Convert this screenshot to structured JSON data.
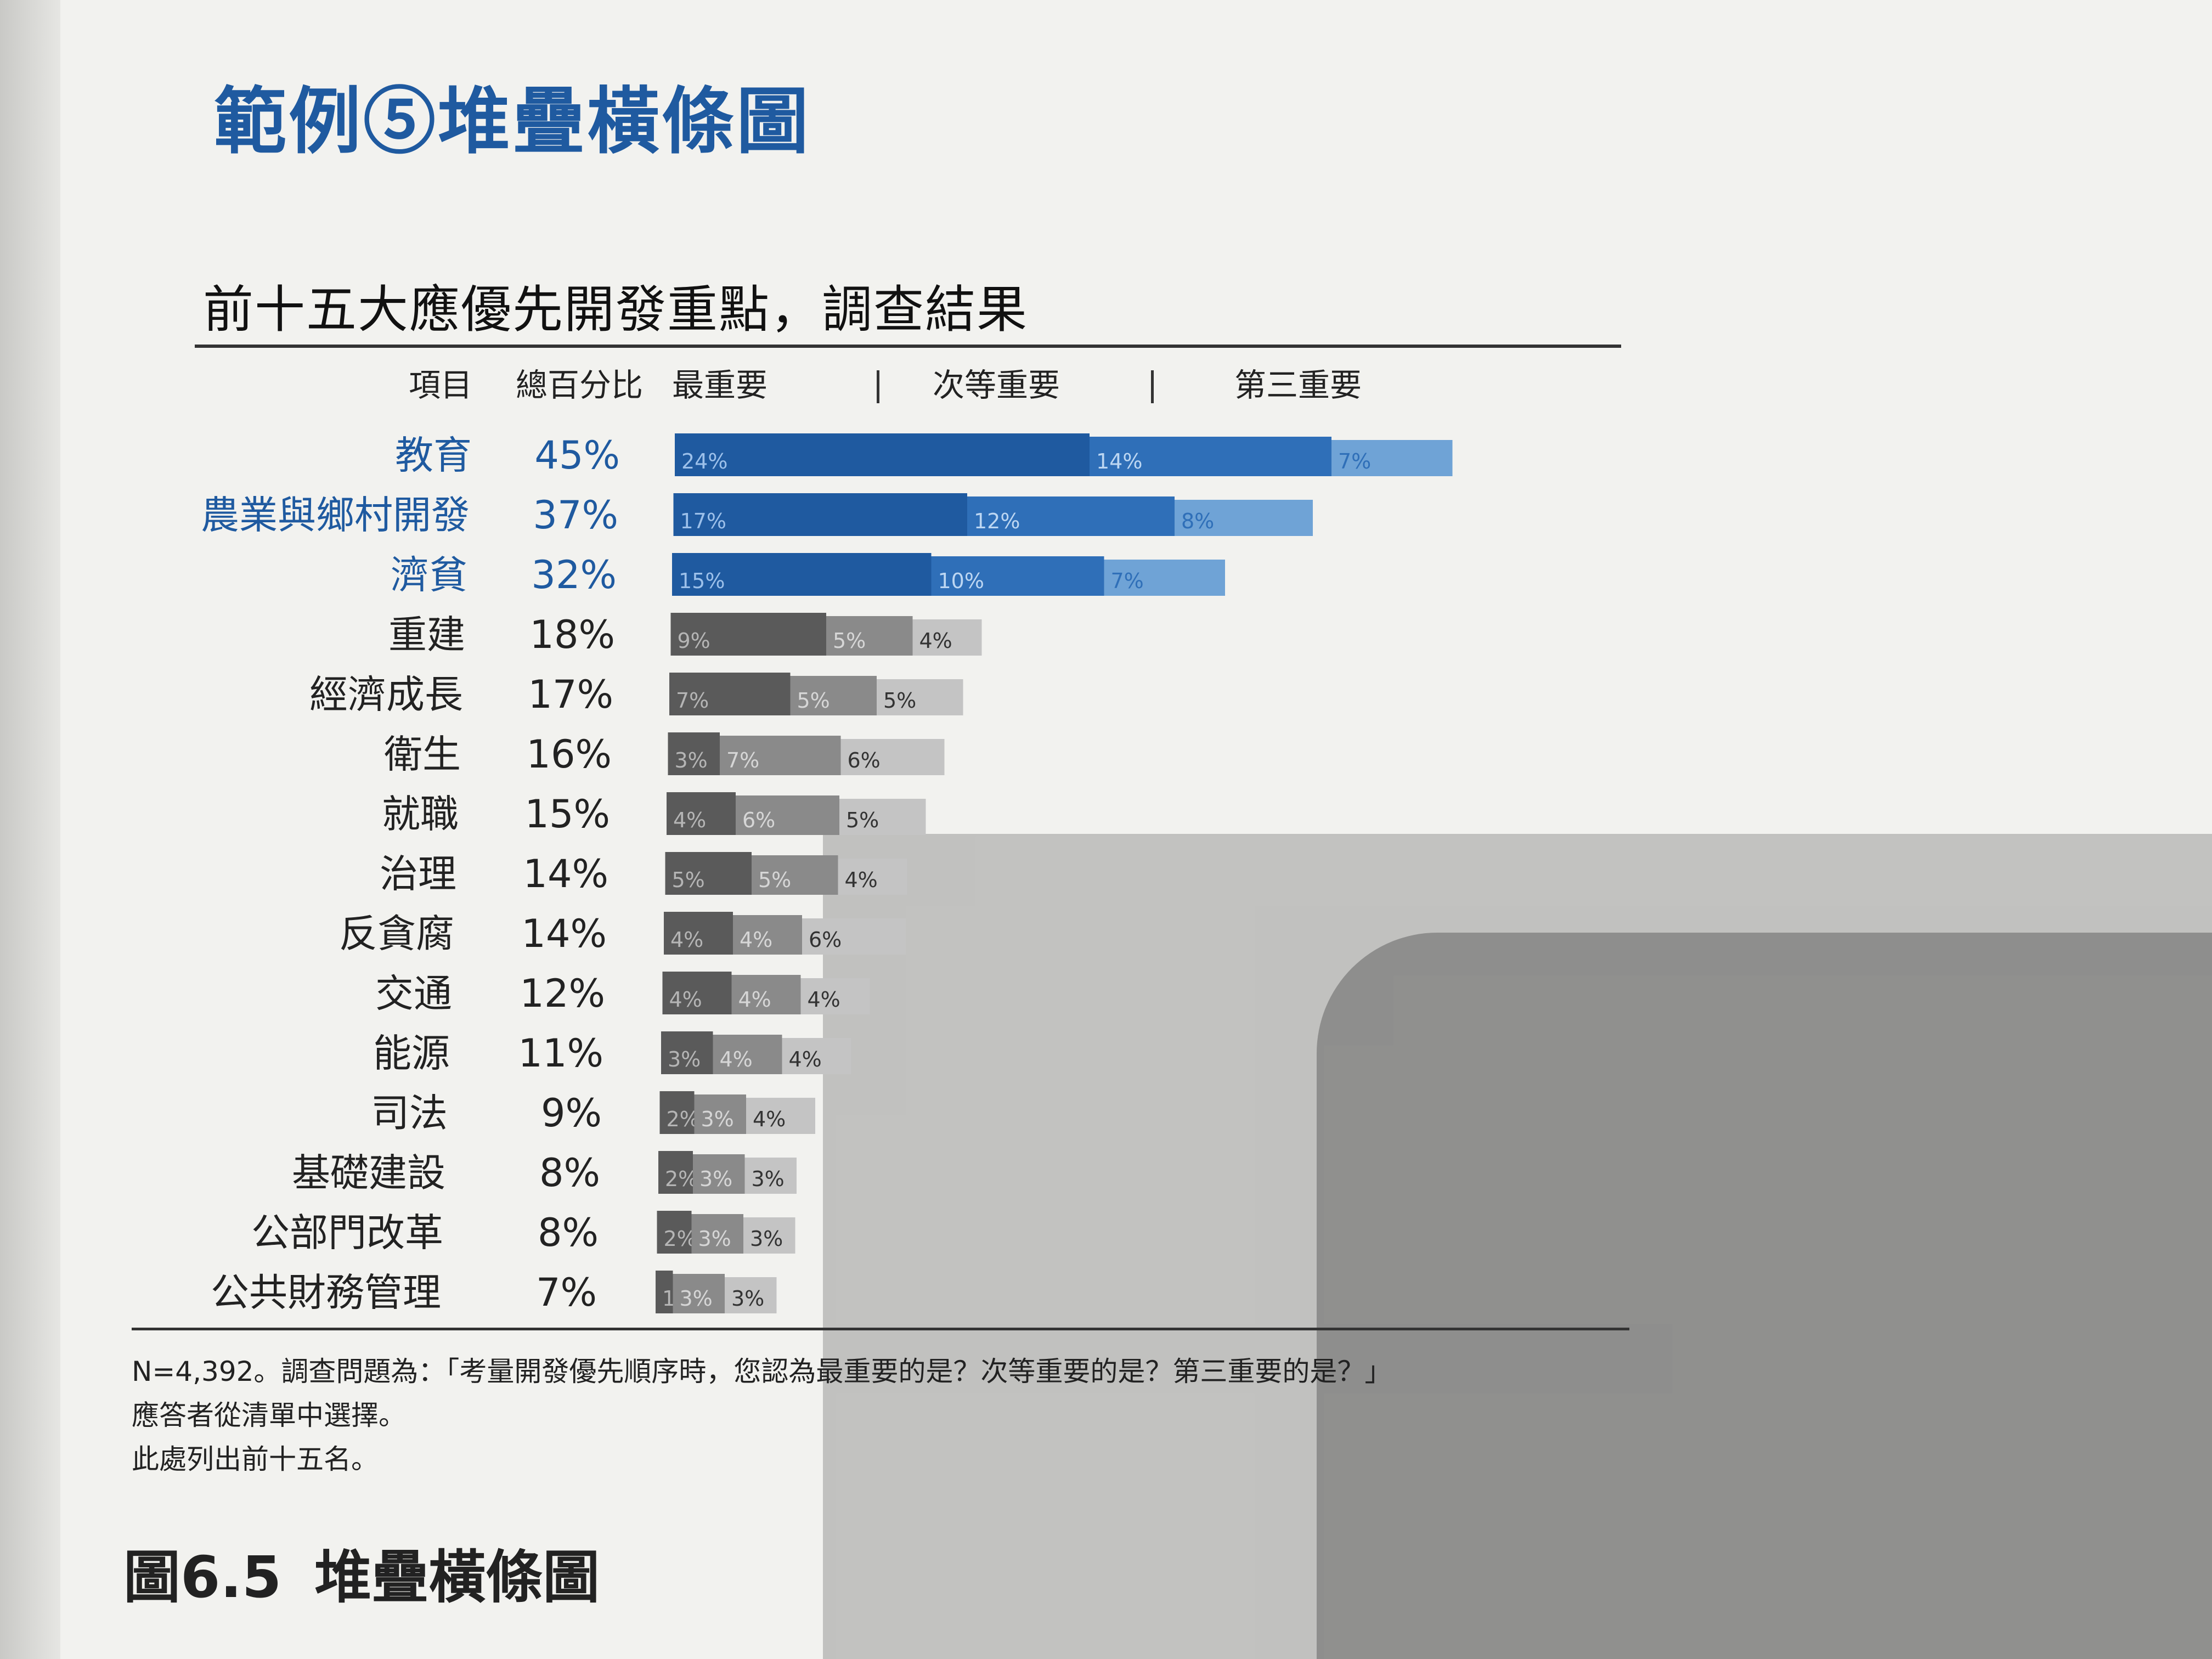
{
  "section_title": "範例⑤堆疊橫條圖",
  "chart_title": "前十五大應優先開發重點，調查結果",
  "headers": {
    "item": "項目",
    "total": "總百分比",
    "first": "最重要",
    "second": "次等重要",
    "third": "第三重要"
  },
  "notes": [
    "N=4,392。調查問題為：「考量開發優先順序時，您認為最重要的是？次等重要的是？第三重要的是？」",
    "應答者從清單中選擇。",
    "此處列出前十五名。"
  ],
  "figure": {
    "number": "圖6.5",
    "title": "堆疊橫條圖"
  },
  "colors": {
    "blue_first": "#1f5aa0",
    "blue_second": "#2f6fb8",
    "blue_third": "#6fa3d6",
    "gray_first": "#5a5a5a",
    "gray_second": "#8a8a8a",
    "gray_third": "#c4c4c4"
  },
  "chart_data": {
    "type": "bar",
    "orientation": "horizontal",
    "stacked": true,
    "title": "前十五大應優先開發重點，調查結果",
    "categories": [
      "教育",
      "農業與鄉村開發",
      "濟貧",
      "重建",
      "經濟成長",
      "衛生",
      "就職",
      "治理",
      "反貪腐",
      "交通",
      "能源",
      "司法",
      "基礎建設",
      "公部門改革",
      "公共財務管理"
    ],
    "totals": [
      "45%",
      "37%",
      "32%",
      "18%",
      "17%",
      "16%",
      "15%",
      "14%",
      "14%",
      "12%",
      "11%",
      "9%",
      "8%",
      "8%",
      "7%"
    ],
    "highlight_count": 3,
    "series": [
      {
        "name": "最重要",
        "values": [
          24,
          17,
          15,
          9,
          7,
          3,
          4,
          5,
          4,
          4,
          3,
          2,
          2,
          2,
          1
        ]
      },
      {
        "name": "次等重要",
        "values": [
          14,
          12,
          10,
          5,
          5,
          7,
          6,
          5,
          4,
          4,
          4,
          3,
          3,
          3,
          3
        ]
      },
      {
        "name": "第三重要",
        "values": [
          7,
          8,
          7,
          4,
          5,
          6,
          5,
          4,
          6,
          4,
          4,
          4,
          3,
          3,
          3
        ]
      }
    ],
    "unit": "%"
  }
}
